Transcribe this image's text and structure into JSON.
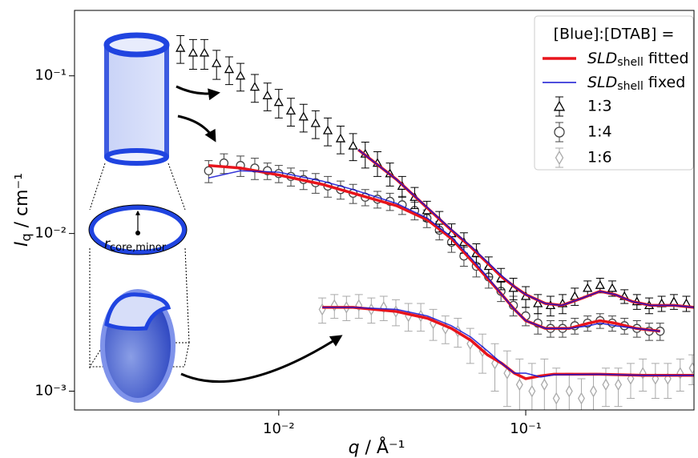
{
  "chart_data": {
    "type": "scatter",
    "xlabel": {
      "symbol": "q",
      "text": " / Å⁻¹"
    },
    "ylabel": {
      "symbol": "I",
      "subscript": "q",
      "text": " / cm⁻¹"
    },
    "xscale": "log",
    "yscale": "log",
    "xlim": [
      0.00149,
      0.48
    ],
    "ylim": [
      0.00076,
      0.26
    ],
    "xticks": [
      {
        "value": 0.01,
        "label": "10⁻²"
      },
      {
        "value": 0.1,
        "label": "10⁻¹"
      }
    ],
    "yticks": [
      {
        "value": 0.001,
        "label": "10⁻³"
      },
      {
        "value": 0.01,
        "label": "10⁻²"
      },
      {
        "value": 0.1,
        "label": "10⁻¹"
      }
    ],
    "legend_title": "[Blue]:[DTAB] =",
    "legend_position": "upper right",
    "annotation": {
      "symbol": "r",
      "subscript": "core,minor"
    },
    "fits": [
      {
        "name": {
          "symbol": "SLD",
          "subscript": "shell",
          "text": " fitted"
        },
        "color": "#e8141c",
        "width": 3.5,
        "curves": [
          {
            "x": [
              0.021,
              0.03,
              0.04,
              0.05,
              0.06,
              0.07,
              0.08,
              0.09,
              0.1,
              0.12,
              0.14,
              0.17,
              0.2,
              0.23,
              0.27,
              0.32,
              0.4,
              0.48
            ],
            "values": [
              0.034,
              0.022,
              0.0145,
              0.0105,
              0.0082,
              0.0065,
              0.0053,
              0.0046,
              0.0041,
              0.0036,
              0.0035,
              0.0039,
              0.0043,
              0.0041,
              0.0037,
              0.0035,
              0.0035,
              0.0034
            ]
          },
          {
            "x": [
              0.0052,
              0.007,
              0.01,
              0.015,
              0.02,
              0.03,
              0.04,
              0.05,
              0.06,
              0.07,
              0.08,
              0.09,
              0.1,
              0.12,
              0.15,
              0.18,
              0.2,
              0.23,
              0.28,
              0.35
            ],
            "values": [
              0.027,
              0.026,
              0.0235,
              0.0205,
              0.018,
              0.015,
              0.0122,
              0.0093,
              0.0068,
              0.0052,
              0.0041,
              0.0033,
              0.0028,
              0.0025,
              0.0025,
              0.0027,
              0.0028,
              0.0027,
              0.0025,
              0.0024
            ]
          },
          {
            "x": [
              0.015,
              0.02,
              0.03,
              0.04,
              0.05,
              0.06,
              0.07,
              0.08,
              0.09,
              0.1,
              0.115,
              0.13,
              0.2,
              0.3,
              0.48
            ],
            "values": [
              0.0034,
              0.0034,
              0.0032,
              0.0029,
              0.0025,
              0.0021,
              0.0017,
              0.0015,
              0.0013,
              0.0012,
              0.00125,
              0.00128,
              0.00128,
              0.00126,
              0.00126
            ]
          }
        ]
      },
      {
        "name": {
          "symbol": "SLD",
          "subscript": "shell",
          "text": " fixed"
        },
        "color": "#1414d2",
        "width": 1.6,
        "curves": [
          {
            "x": [
              0.021,
              0.03,
              0.04,
              0.05,
              0.06,
              0.07,
              0.08,
              0.09,
              0.1,
              0.12,
              0.14,
              0.17,
              0.2,
              0.23,
              0.27,
              0.32,
              0.4,
              0.48
            ],
            "values": [
              0.034,
              0.022,
              0.0146,
              0.0106,
              0.0083,
              0.0066,
              0.0054,
              0.0046,
              0.0041,
              0.0036,
              0.0035,
              0.0039,
              0.0043,
              0.0041,
              0.0037,
              0.0035,
              0.0035,
              0.0034
            ]
          },
          {
            "x": [
              0.0052,
              0.007,
              0.01,
              0.015,
              0.02,
              0.03,
              0.04,
              0.05,
              0.06,
              0.07,
              0.08,
              0.09,
              0.1,
              0.12,
              0.15,
              0.18,
              0.2,
              0.23,
              0.28,
              0.35
            ],
            "values": [
              0.0225,
              0.025,
              0.0245,
              0.0215,
              0.019,
              0.0155,
              0.0125,
              0.0095,
              0.007,
              0.0053,
              0.0041,
              0.0033,
              0.0028,
              0.0025,
              0.0025,
              0.0026,
              0.0027,
              0.0026,
              0.0025,
              0.0024
            ]
          },
          {
            "x": [
              0.015,
              0.02,
              0.03,
              0.04,
              0.05,
              0.06,
              0.07,
              0.08,
              0.09,
              0.1,
              0.115,
              0.13,
              0.2,
              0.3,
              0.48
            ],
            "values": [
              0.0034,
              0.0034,
              0.0033,
              0.003,
              0.0026,
              0.0022,
              0.0018,
              0.0015,
              0.0013,
              0.0013,
              0.00123,
              0.00127,
              0.00128,
              0.00126,
              0.00126
            ]
          }
        ]
      }
    ],
    "series": [
      {
        "name": "1:3",
        "marker": "triangle",
        "color": "#000000",
        "x": [
          0.004,
          0.0045,
          0.005,
          0.0056,
          0.0063,
          0.007,
          0.008,
          0.009,
          0.01,
          0.0112,
          0.0126,
          0.0141,
          0.0158,
          0.0178,
          0.02,
          0.0224,
          0.0251,
          0.0282,
          0.0316,
          0.0355,
          0.0398,
          0.0447,
          0.0501,
          0.0562,
          0.0631,
          0.0708,
          0.0794,
          0.0891,
          0.1,
          0.112,
          0.126,
          0.141,
          0.158,
          0.178,
          0.2,
          0.224,
          0.251,
          0.282,
          0.316,
          0.355,
          0.398,
          0.447
        ],
        "values": [
          0.15,
          0.14,
          0.14,
          0.12,
          0.11,
          0.1,
          0.085,
          0.075,
          0.068,
          0.06,
          0.055,
          0.05,
          0.045,
          0.04,
          0.036,
          0.032,
          0.028,
          0.024,
          0.02,
          0.017,
          0.014,
          0.012,
          0.01,
          0.0088,
          0.0075,
          0.0062,
          0.0052,
          0.0045,
          0.004,
          0.0036,
          0.0035,
          0.0036,
          0.004,
          0.0045,
          0.0047,
          0.0045,
          0.004,
          0.0037,
          0.0035,
          0.0036,
          0.0037,
          0.0036
        ],
        "errors": [
          0.03,
          0.03,
          0.03,
          0.025,
          0.022,
          0.02,
          0.017,
          0.015,
          0.014,
          0.012,
          0.011,
          0.01,
          0.009,
          0.008,
          0.007,
          0.006,
          0.005,
          0.004,
          0.003,
          0.0026,
          0.002,
          0.0018,
          0.0015,
          0.0013,
          0.0011,
          0.0009,
          0.0008,
          0.0007,
          0.0006,
          0.0005,
          0.0005,
          0.0005,
          0.0005,
          0.0005,
          0.0005,
          0.0005,
          0.0004,
          0.0004,
          0.0004,
          0.0004,
          0.0004,
          0.0004
        ]
      },
      {
        "name": "1:4",
        "marker": "circle",
        "color": "#444444",
        "x": [
          0.0052,
          0.006,
          0.007,
          0.008,
          0.009,
          0.01,
          0.0112,
          0.0126,
          0.0141,
          0.0158,
          0.0178,
          0.02,
          0.0224,
          0.0251,
          0.0282,
          0.0316,
          0.0355,
          0.0398,
          0.0447,
          0.0501,
          0.0562,
          0.0631,
          0.0708,
          0.0794,
          0.0891,
          0.1,
          0.112,
          0.126,
          0.141,
          0.158,
          0.178,
          0.2,
          0.224,
          0.251,
          0.282,
          0.316,
          0.35
        ],
        "values": [
          0.025,
          0.028,
          0.027,
          0.026,
          0.025,
          0.024,
          0.023,
          0.022,
          0.021,
          0.02,
          0.019,
          0.018,
          0.017,
          0.0165,
          0.016,
          0.0152,
          0.014,
          0.0125,
          0.0105,
          0.0088,
          0.0072,
          0.0062,
          0.0053,
          0.0043,
          0.0035,
          0.003,
          0.0027,
          0.0025,
          0.0025,
          0.0026,
          0.0027,
          0.0028,
          0.0027,
          0.0026,
          0.0025,
          0.0024,
          0.0024
        ],
        "errors": [
          0.004,
          0.004,
          0.004,
          0.004,
          0.003,
          0.003,
          0.003,
          0.003,
          0.003,
          0.003,
          0.0025,
          0.0025,
          0.002,
          0.002,
          0.002,
          0.002,
          0.0018,
          0.0016,
          0.0014,
          0.0012,
          0.001,
          0.0009,
          0.0008,
          0.0006,
          0.0005,
          0.0004,
          0.0004,
          0.0003,
          0.0003,
          0.0003,
          0.0003,
          0.0003,
          0.0003,
          0.0003,
          0.0003,
          0.0003,
          0.0003
        ]
      },
      {
        "name": "1:6",
        "marker": "diamond",
        "color": "#aaaaaa",
        "x": [
          0.015,
          0.0168,
          0.0188,
          0.0211,
          0.0237,
          0.0266,
          0.0298,
          0.0335,
          0.0376,
          0.0422,
          0.0473,
          0.0531,
          0.0596,
          0.0668,
          0.075,
          0.0841,
          0.0944,
          0.106,
          0.119,
          0.133,
          0.15,
          0.168,
          0.188,
          0.211,
          0.237,
          0.266,
          0.298,
          0.335,
          0.376,
          0.422,
          0.473
        ],
        "values": [
          0.0033,
          0.0035,
          0.0034,
          0.0035,
          0.0033,
          0.0034,
          0.0032,
          0.003,
          0.003,
          0.0027,
          0.0025,
          0.0024,
          0.002,
          0.0018,
          0.0015,
          0.0013,
          0.0011,
          0.001,
          0.0011,
          0.0009,
          0.001,
          0.0009,
          0.001,
          0.0011,
          0.0011,
          0.0012,
          0.0013,
          0.0012,
          0.0012,
          0.0013,
          0.0014
        ],
        "errors": [
          0.0006,
          0.0006,
          0.0006,
          0.0006,
          0.0006,
          0.0006,
          0.0006,
          0.0006,
          0.0006,
          0.0006,
          0.0005,
          0.0005,
          0.0005,
          0.0005,
          0.0005,
          0.0005,
          0.0005,
          0.0005,
          0.0005,
          0.0005,
          0.0003,
          0.0003,
          0.0003,
          0.0003,
          0.0003,
          0.0003,
          0.0003,
          0.0003,
          0.0003,
          0.0003,
          0.0003
        ]
      }
    ]
  }
}
